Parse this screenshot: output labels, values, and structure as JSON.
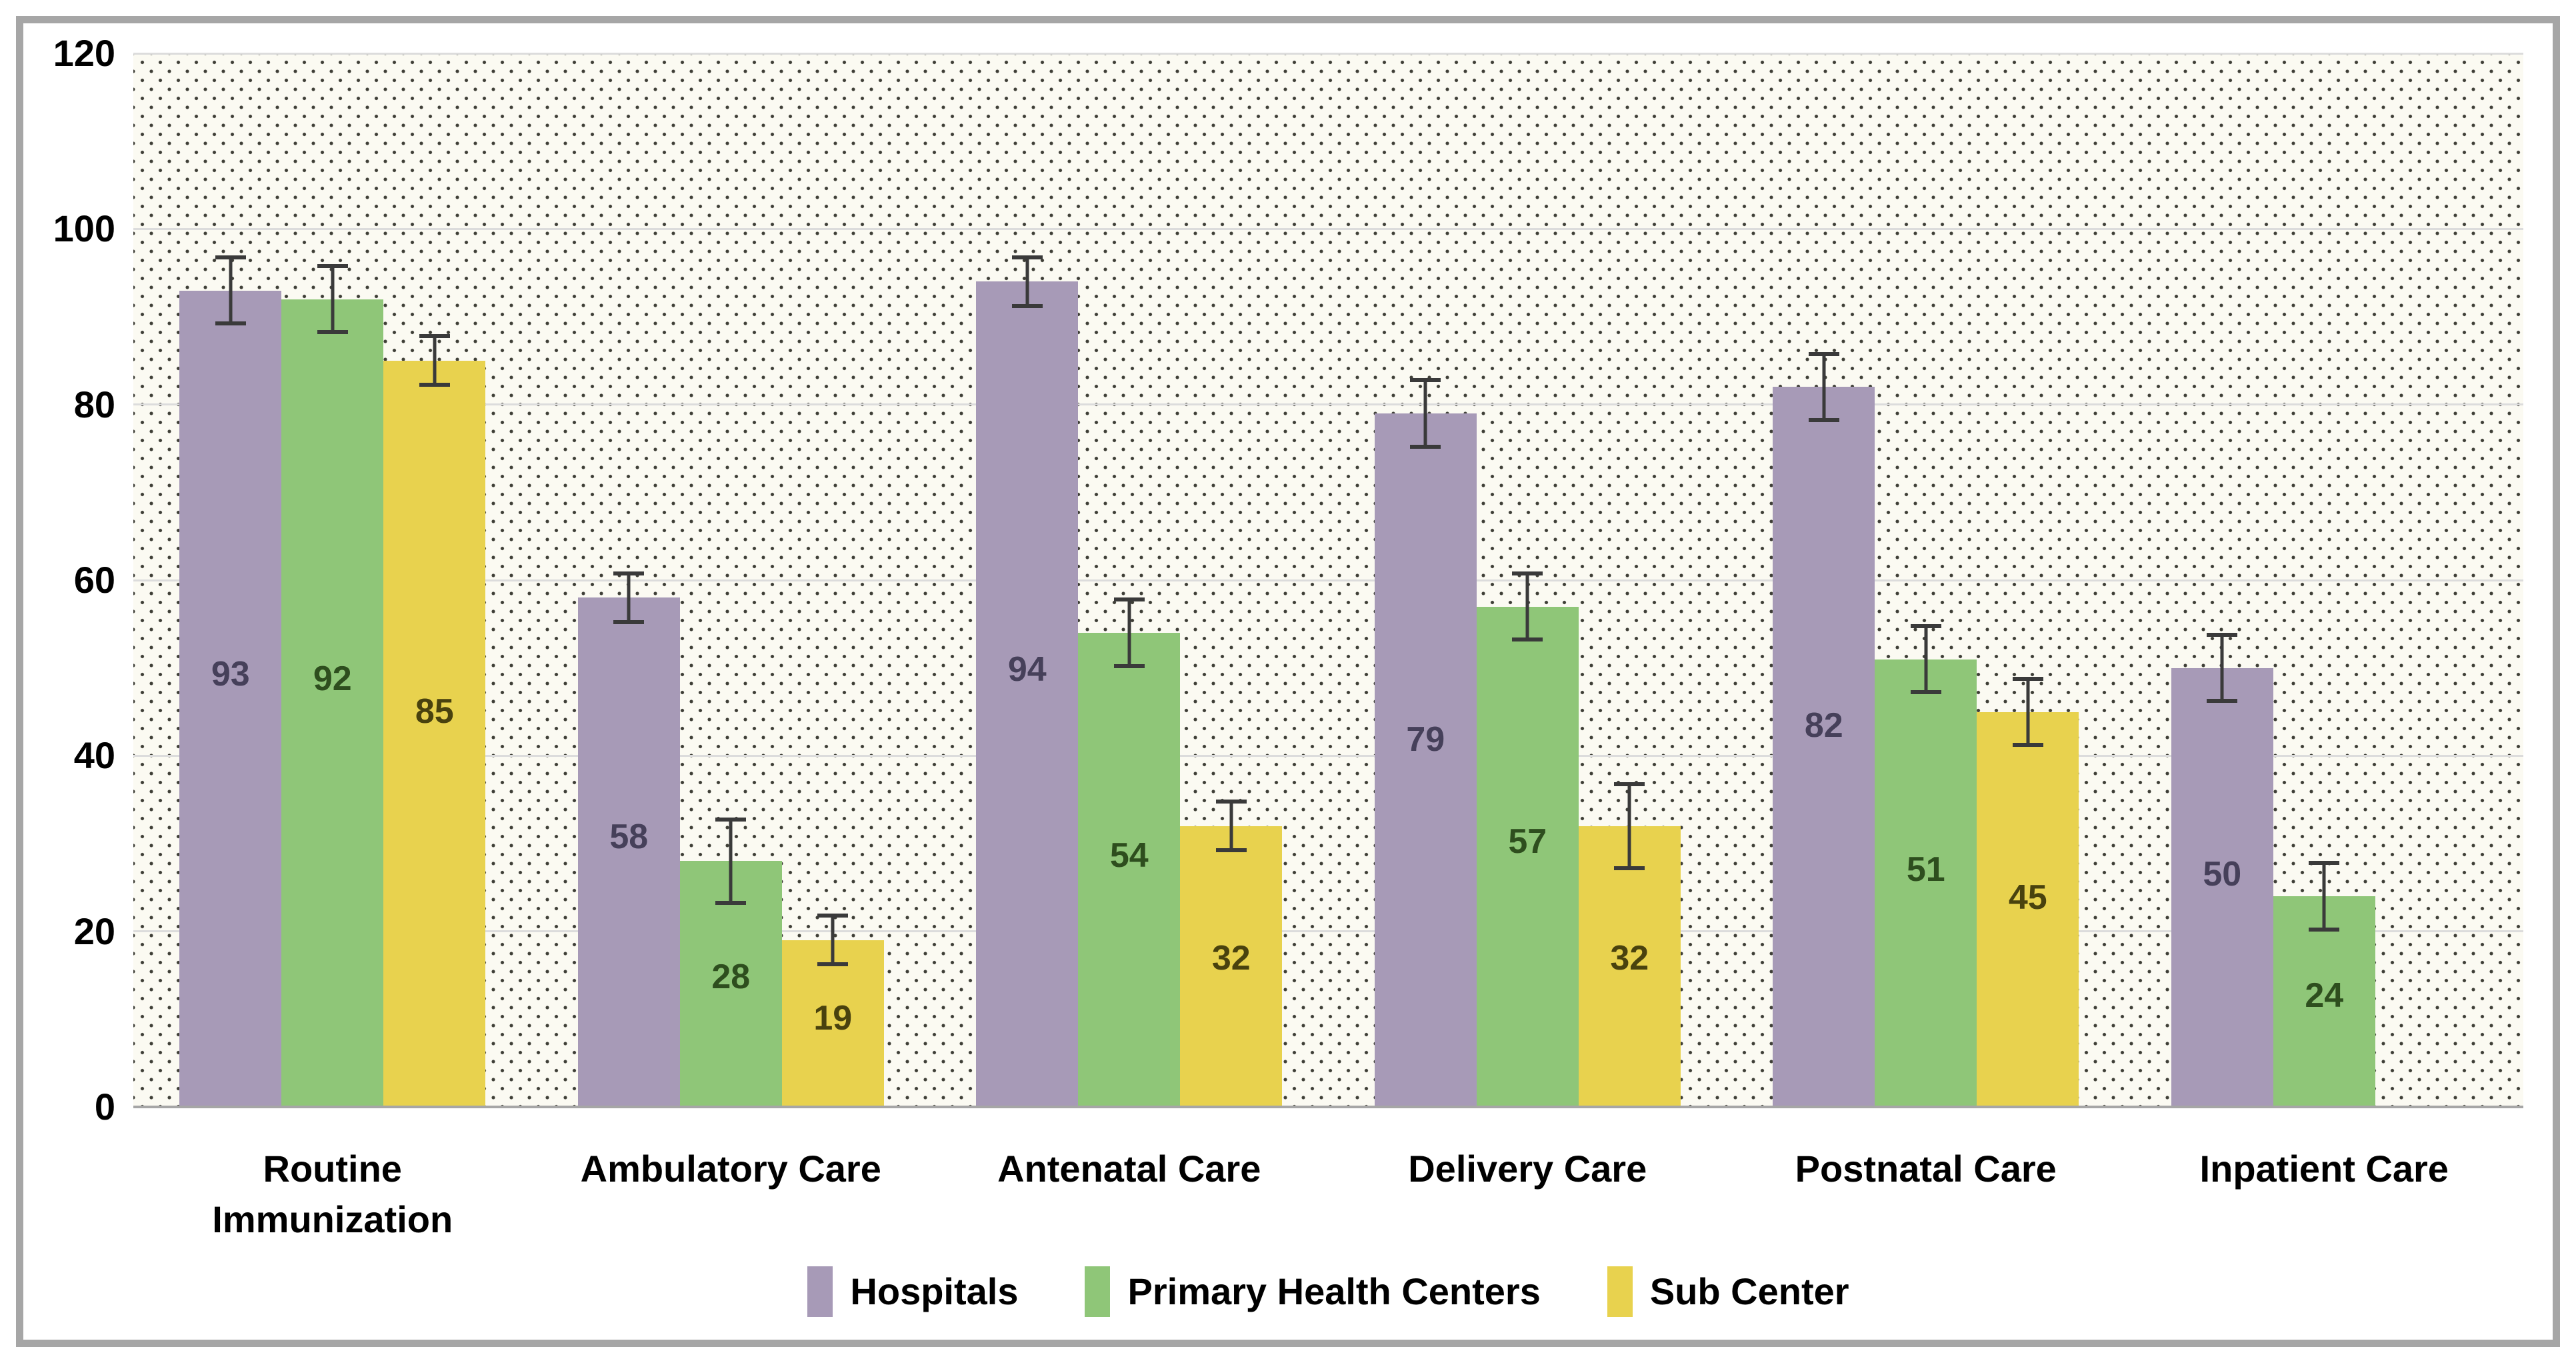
{
  "chart_data": {
    "type": "bar",
    "title": "",
    "xlabel": "",
    "ylabel": "",
    "categories": [
      "Routine Immunization",
      "Ambulatory Care",
      "Antenatal Care",
      "Delivery Care",
      "Postnatal Care",
      "Inpatient Care"
    ],
    "series": [
      {
        "name": "Hospitals",
        "color": "#a79ab7",
        "label_color": "#46405a",
        "values": [
          93,
          58,
          94,
          79,
          82,
          50
        ],
        "errors": [
          4,
          3,
          3,
          4,
          4,
          4
        ]
      },
      {
        "name": "Primary Health Centers",
        "color": "#8fc678",
        "label_color": "#2e4e1e",
        "values": [
          92,
          28,
          54,
          57,
          51,
          24
        ],
        "errors": [
          4,
          5,
          4,
          4,
          4,
          4
        ]
      },
      {
        "name": "Sub Center",
        "color": "#e8d24e",
        "label_color": "#49420e",
        "values": [
          85,
          19,
          32,
          32,
          45,
          null
        ],
        "errors": [
          3,
          3,
          3,
          5,
          4,
          null
        ]
      }
    ],
    "ylim": [
      0,
      120
    ],
    "yticks": [
      0,
      20,
      40,
      60,
      80,
      100,
      120
    ],
    "grid": true,
    "error_bars": true,
    "legend_position": "bottom",
    "plot_background": "#fbfaf2",
    "dot_pattern_color": "#3f3f37",
    "gridline_color": "#dcdcdc",
    "axis_line_color": "#a6a6a6",
    "frame_border_color": "#a6a6a6",
    "tick_label_color": "#000000",
    "category_label_color": "#000000",
    "error_bar_color": "#3a3a3a"
  }
}
